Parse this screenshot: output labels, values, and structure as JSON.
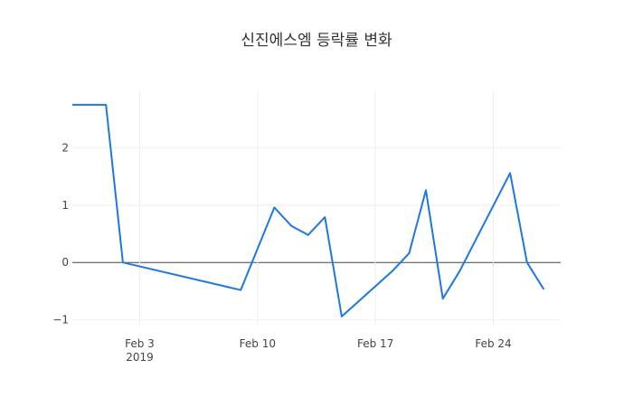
{
  "chart_data": {
    "type": "line",
    "title": "신진에스엠 등락률 변화",
    "xlabel": "",
    "ylabel": "",
    "xlim": [
      "2019-01-30",
      "2019-02-28"
    ],
    "ylim": [
      -1.1,
      3.0
    ],
    "grid": true,
    "x_ticks": [
      {
        "date": "2019-02-03",
        "label": "Feb 3",
        "sublabel": "2019"
      },
      {
        "date": "2019-02-10",
        "label": "Feb 10",
        "sublabel": ""
      },
      {
        "date": "2019-02-17",
        "label": "Feb 17",
        "sublabel": ""
      },
      {
        "date": "2019-02-24",
        "label": "Feb 24",
        "sublabel": ""
      }
    ],
    "y_ticks": [
      {
        "value": -1,
        "label": "−1"
      },
      {
        "value": 0,
        "label": "0"
      },
      {
        "value": 1,
        "label": "1"
      },
      {
        "value": 2,
        "label": "2"
      }
    ],
    "series": [
      {
        "color": "#1f77e0",
        "x": [
          "2019-01-30",
          "2019-02-01",
          "2019-02-02",
          "2019-02-09",
          "2019-02-11",
          "2019-02-12",
          "2019-02-13",
          "2019-02-14",
          "2019-02-15",
          "2019-02-18",
          "2019-02-19",
          "2019-02-20",
          "2019-02-21",
          "2019-02-22",
          "2019-02-25",
          "2019-02-26",
          "2019-02-27"
        ],
        "y": [
          2.75,
          2.75,
          0.0,
          -0.48,
          0.96,
          0.64,
          0.48,
          0.79,
          -0.94,
          -0.15,
          0.16,
          1.26,
          -0.63,
          -0.15,
          1.56,
          0.0,
          -0.47
        ]
      }
    ]
  }
}
